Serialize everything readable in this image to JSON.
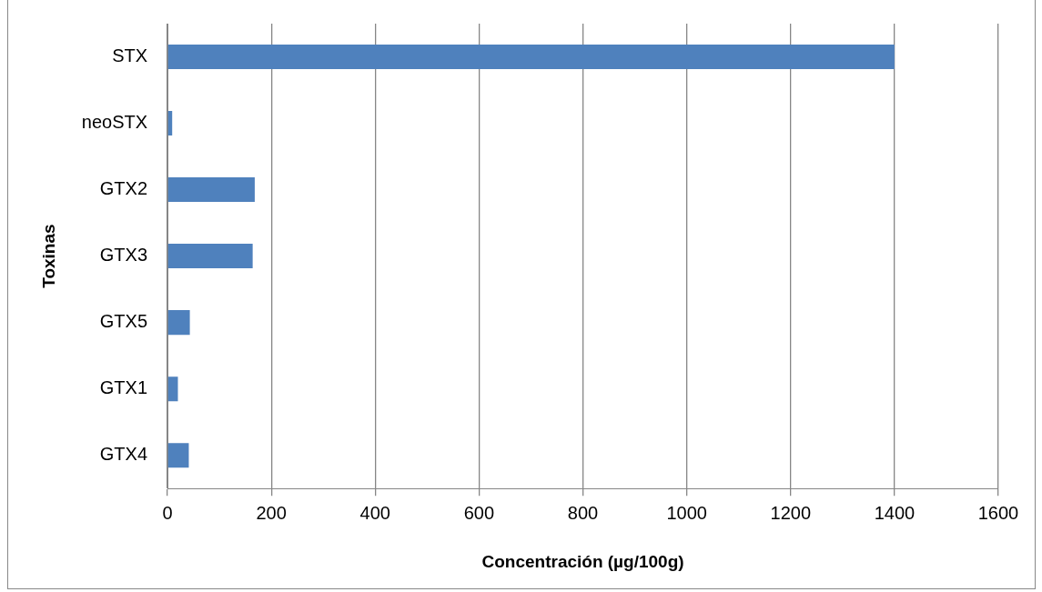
{
  "chart_data": {
    "type": "bar",
    "orientation": "horizontal",
    "xlabel": "Concentración (µg/100g)",
    "ylabel": "Toxinas",
    "categories": [
      "STX",
      "neoSTX",
      "GTX2",
      "GTX3",
      "GTX5",
      "GTX1",
      "GTX4"
    ],
    "values": [
      1400,
      9,
      168,
      164,
      43,
      20,
      41
    ],
    "color": "#4f81bd",
    "xlim": [
      0,
      1600
    ],
    "xticks": [
      0,
      200,
      400,
      600,
      800,
      1000,
      1200,
      1400,
      1600
    ],
    "grid": "x",
    "legend": false
  }
}
